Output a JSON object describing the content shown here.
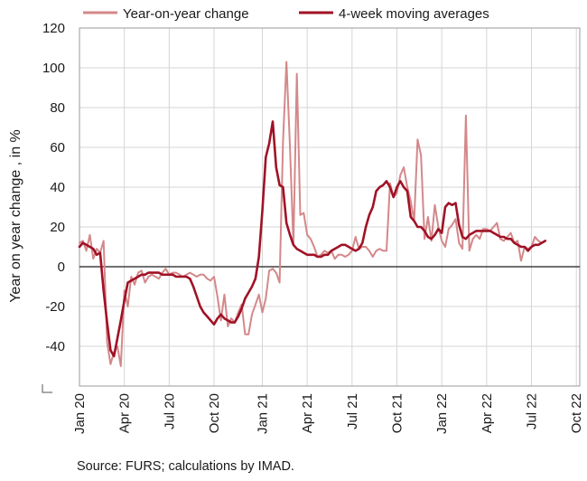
{
  "chart_data": {
    "type": "line",
    "ylabel": "Year on year change , in %",
    "ylim": [
      -60,
      120
    ],
    "yticks": [
      -40,
      -20,
      0,
      20,
      40,
      60,
      80,
      100,
      120
    ],
    "xlim": [
      0,
      145
    ],
    "xticks": [
      {
        "x": 0,
        "label": "Jan 20"
      },
      {
        "x": 13,
        "label": "Apr 20"
      },
      {
        "x": 26,
        "label": "Jul 20"
      },
      {
        "x": 39,
        "label": "Oct 20"
      },
      {
        "x": 53,
        "label": "Jan 21"
      },
      {
        "x": 66,
        "label": "Apr 21"
      },
      {
        "x": 79,
        "label": "Jul 21"
      },
      {
        "x": 92,
        "label": "Oct 21"
      },
      {
        "x": 105,
        "label": "Jan 22"
      },
      {
        "x": 118,
        "label": "Apr 22"
      },
      {
        "x": 131,
        "label": "Jul 22"
      },
      {
        "x": 144,
        "label": "Oct 22"
      }
    ],
    "grid": true,
    "legend": "top",
    "series": [
      {
        "name": "Year-on-year change",
        "color": "#d4888a",
        "points": [
          [
            0,
            12
          ],
          [
            1,
            13
          ],
          [
            2,
            8
          ],
          [
            3,
            16
          ],
          [
            4,
            4
          ],
          [
            5,
            9
          ],
          [
            6,
            7
          ],
          [
            7,
            13
          ],
          [
            8,
            -38
          ],
          [
            9,
            -49
          ],
          [
            10,
            -43
          ],
          [
            11,
            -40
          ],
          [
            12,
            -50
          ],
          [
            13,
            -12
          ],
          [
            14,
            -20
          ],
          [
            15,
            -5
          ],
          [
            16,
            -9
          ],
          [
            17,
            -3
          ],
          [
            18,
            -2
          ],
          [
            19,
            -8
          ],
          [
            20,
            -5
          ],
          [
            21,
            -4
          ],
          [
            22,
            -5
          ],
          [
            23,
            -6
          ],
          [
            24,
            -3
          ],
          [
            25,
            -1
          ],
          [
            26,
            -4
          ],
          [
            27,
            -3
          ],
          [
            28,
            -3
          ],
          [
            29,
            -4
          ],
          [
            30,
            -5
          ],
          [
            31,
            -4
          ],
          [
            32,
            -3
          ],
          [
            33,
            -4
          ],
          [
            34,
            -5
          ],
          [
            35,
            -4
          ],
          [
            36,
            -4
          ],
          [
            37,
            -6
          ],
          [
            38,
            -7
          ],
          [
            39,
            -5
          ],
          [
            40,
            -15
          ],
          [
            41,
            -27
          ],
          [
            42,
            -14
          ],
          [
            43,
            -30
          ],
          [
            44,
            -26
          ],
          [
            45,
            -28
          ],
          [
            46,
            -23
          ],
          [
            47,
            -19
          ],
          [
            48,
            -34
          ],
          [
            49,
            -34
          ],
          [
            50,
            -24
          ],
          [
            51,
            -19
          ],
          [
            52,
            -14
          ],
          [
            53,
            -23
          ],
          [
            54,
            -16
          ],
          [
            55,
            -2
          ],
          [
            56,
            -1
          ],
          [
            57,
            -3
          ],
          [
            58,
            -8
          ],
          [
            59,
            63
          ],
          [
            60,
            103
          ],
          [
            61,
            60
          ],
          [
            62,
            11
          ],
          [
            63,
            97
          ],
          [
            64,
            26
          ],
          [
            65,
            27
          ],
          [
            66,
            16
          ],
          [
            67,
            14
          ],
          [
            68,
            10
          ],
          [
            69,
            5
          ],
          [
            70,
            6
          ],
          [
            71,
            8
          ],
          [
            72,
            7
          ],
          [
            73,
            8
          ],
          [
            74,
            4
          ],
          [
            75,
            6
          ],
          [
            76,
            6
          ],
          [
            77,
            5
          ],
          [
            78,
            6
          ],
          [
            79,
            8
          ],
          [
            80,
            15
          ],
          [
            81,
            9
          ],
          [
            82,
            10
          ],
          [
            83,
            10
          ],
          [
            84,
            8
          ],
          [
            85,
            5
          ],
          [
            86,
            8
          ],
          [
            87,
            9
          ],
          [
            88,
            8
          ],
          [
            89,
            8
          ],
          [
            90,
            42
          ],
          [
            91,
            35
          ],
          [
            92,
            37
          ],
          [
            93,
            46
          ],
          [
            94,
            50
          ],
          [
            95,
            40
          ],
          [
            96,
            33
          ],
          [
            97,
            23
          ],
          [
            98,
            64
          ],
          [
            99,
            56
          ],
          [
            100,
            14
          ],
          [
            101,
            25
          ],
          [
            102,
            13
          ],
          [
            103,
            31
          ],
          [
            104,
            20
          ],
          [
            105,
            13
          ],
          [
            106,
            10
          ],
          [
            107,
            19
          ],
          [
            108,
            21
          ],
          [
            109,
            24
          ],
          [
            110,
            12
          ],
          [
            111,
            9
          ],
          [
            112,
            76
          ],
          [
            113,
            8
          ],
          [
            114,
            14
          ],
          [
            115,
            16
          ],
          [
            116,
            14
          ],
          [
            117,
            19
          ],
          [
            118,
            19
          ],
          [
            119,
            18
          ],
          [
            120,
            20
          ],
          [
            121,
            22
          ],
          [
            122,
            14
          ],
          [
            123,
            13
          ],
          [
            124,
            15
          ],
          [
            125,
            17
          ],
          [
            126,
            12
          ],
          [
            127,
            13
          ],
          [
            128,
            3
          ],
          [
            129,
            10
          ],
          [
            130,
            9
          ],
          [
            131,
            10
          ],
          [
            132,
            15
          ],
          [
            133,
            13
          ],
          [
            134,
            12
          ],
          [
            135,
            13
          ]
        ]
      },
      {
        "name": "4-week moving averages",
        "color": "#a01226",
        "points": [
          [
            0,
            10
          ],
          [
            1,
            12
          ],
          [
            2,
            11
          ],
          [
            3,
            10
          ],
          [
            4,
            9
          ],
          [
            5,
            6
          ],
          [
            6,
            7
          ],
          [
            7,
            -12
          ],
          [
            8,
            -28
          ],
          [
            9,
            -42
          ],
          [
            10,
            -45
          ],
          [
            11,
            -36
          ],
          [
            12,
            -27
          ],
          [
            13,
            -17
          ],
          [
            14,
            -8
          ],
          [
            15,
            -7
          ],
          [
            16,
            -6
          ],
          [
            17,
            -5
          ],
          [
            18,
            -4
          ],
          [
            19,
            -4
          ],
          [
            20,
            -3
          ],
          [
            21,
            -3
          ],
          [
            22,
            -3
          ],
          [
            23,
            -3
          ],
          [
            24,
            -4
          ],
          [
            25,
            -4
          ],
          [
            26,
            -4
          ],
          [
            27,
            -4
          ],
          [
            28,
            -5
          ],
          [
            29,
            -5
          ],
          [
            30,
            -5
          ],
          [
            31,
            -5
          ],
          [
            32,
            -6
          ],
          [
            33,
            -10
          ],
          [
            34,
            -15
          ],
          [
            35,
            -20
          ],
          [
            36,
            -23
          ],
          [
            37,
            -25
          ],
          [
            38,
            -27
          ],
          [
            39,
            -29
          ],
          [
            40,
            -26
          ],
          [
            41,
            -24
          ],
          [
            42,
            -26
          ],
          [
            43,
            -27
          ],
          [
            44,
            -28
          ],
          [
            45,
            -28
          ],
          [
            46,
            -25
          ],
          [
            47,
            -21
          ],
          [
            48,
            -16
          ],
          [
            49,
            -13
          ],
          [
            50,
            -10
          ],
          [
            51,
            -6
          ],
          [
            52,
            5
          ],
          [
            53,
            28
          ],
          [
            54,
            55
          ],
          [
            55,
            62
          ],
          [
            56,
            73
          ],
          [
            57,
            50
          ],
          [
            58,
            41
          ],
          [
            59,
            40
          ],
          [
            60,
            22
          ],
          [
            61,
            16
          ],
          [
            62,
            11
          ],
          [
            63,
            9
          ],
          [
            64,
            8
          ],
          [
            65,
            7
          ],
          [
            66,
            6
          ],
          [
            67,
            6
          ],
          [
            68,
            6
          ],
          [
            69,
            5
          ],
          [
            70,
            5
          ],
          [
            71,
            6
          ],
          [
            72,
            6
          ],
          [
            73,
            8
          ],
          [
            74,
            9
          ],
          [
            75,
            10
          ],
          [
            76,
            11
          ],
          [
            77,
            11
          ],
          [
            78,
            10
          ],
          [
            79,
            9
          ],
          [
            80,
            8
          ],
          [
            81,
            9
          ],
          [
            82,
            12
          ],
          [
            83,
            20
          ],
          [
            84,
            26
          ],
          [
            85,
            30
          ],
          [
            86,
            38
          ],
          [
            87,
            40
          ],
          [
            88,
            41
          ],
          [
            89,
            43
          ],
          [
            90,
            40
          ],
          [
            91,
            35
          ],
          [
            92,
            40
          ],
          [
            93,
            43
          ],
          [
            94,
            40
          ],
          [
            95,
            38
          ],
          [
            96,
            25
          ],
          [
            97,
            23
          ],
          [
            98,
            20
          ],
          [
            99,
            20
          ],
          [
            100,
            18
          ],
          [
            101,
            15
          ],
          [
            102,
            14
          ],
          [
            103,
            16
          ],
          [
            104,
            19
          ],
          [
            105,
            17
          ],
          [
            106,
            30
          ],
          [
            107,
            32
          ],
          [
            108,
            31
          ],
          [
            109,
            32
          ],
          [
            110,
            21
          ],
          [
            111,
            15
          ],
          [
            112,
            14
          ],
          [
            113,
            16
          ],
          [
            114,
            17
          ],
          [
            115,
            18
          ],
          [
            116,
            18
          ],
          [
            117,
            18
          ],
          [
            118,
            18
          ],
          [
            119,
            18
          ],
          [
            120,
            17
          ],
          [
            121,
            16
          ],
          [
            122,
            15
          ],
          [
            123,
            15
          ],
          [
            124,
            14
          ],
          [
            125,
            14
          ],
          [
            126,
            12
          ],
          [
            127,
            11
          ],
          [
            128,
            10
          ],
          [
            129,
            10
          ],
          [
            130,
            8
          ],
          [
            131,
            10
          ],
          [
            132,
            11
          ],
          [
            133,
            11
          ],
          [
            134,
            12
          ],
          [
            135,
            13
          ]
        ]
      }
    ],
    "source": "Source: FURS; calculations by IMAD."
  }
}
